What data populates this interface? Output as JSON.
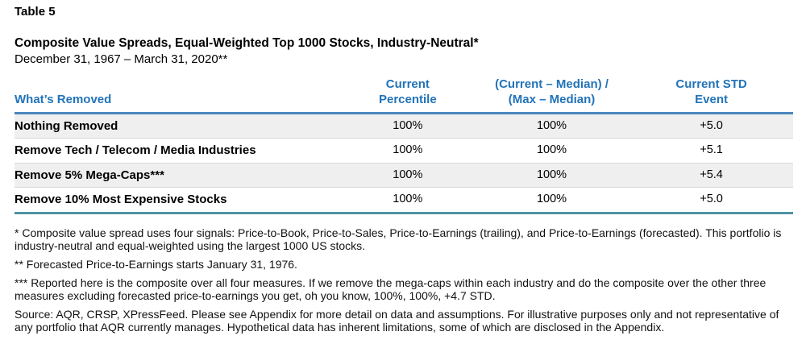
{
  "page": {
    "table_label": "Table 5",
    "title": "Composite Value Spreads, Equal-Weighted Top 1000 Stocks, Industry-Neutral*",
    "subtitle": "December 31, 1967 – March 31, 2020**"
  },
  "table": {
    "headers": {
      "whats_removed": "What’s Removed",
      "current_percentile": "Current\nPercentile",
      "current_median_ratio": "(Current – Median) /\n(Max – Median)",
      "current_std_event": "Current STD\nEvent"
    },
    "rows": [
      {
        "whats_removed": "Nothing Removed",
        "current_percentile": "100%",
        "current_median_ratio": "100%",
        "current_std_event": "+5.0"
      },
      {
        "whats_removed": "Remove Tech / Telecom / Media Industries",
        "current_percentile": "100%",
        "current_median_ratio": "100%",
        "current_std_event": "+5.1"
      },
      {
        "whats_removed": "Remove 5% Mega-Caps***",
        "current_percentile": "100%",
        "current_median_ratio": "100%",
        "current_std_event": "+5.4"
      },
      {
        "whats_removed": "Remove 10% Most Expensive Stocks",
        "current_percentile": "100%",
        "current_median_ratio": "100%",
        "current_std_event": "+5.0"
      }
    ]
  },
  "footnotes": [
    "* Composite value spread uses four signals: Price-to-Book, Price-to-Sales, Price-to-Earnings (trailing), and Price-to-Earnings (forecasted). This portfolio is industry-neutral and equal-weighted using the largest 1000 US stocks.",
    "** Forecasted Price-to-Earnings starts January 31, 1976.",
    "*** Reported here is the composite over all four measures. If we remove the mega-caps within each industry and do the composite over the other three measures excluding forecasted price-to-earnings you get, oh you know, 100%, 100%, +4.7 STD.",
    "Source: AQR, CRSP, XPressFeed. Please see Appendix for more detail on data and assumptions. For illustrative purposes only and not representative of any portfolio that AQR currently manages. Hypothetical data has inherent limitations, some of which are disclosed in the Appendix."
  ],
  "colors": {
    "header_text_blue": "#2173b9",
    "header_rule_blue": "#4b86be",
    "bottom_rule_teal": "#4e93a4",
    "row_alt_background": "#efefef",
    "row_separator": "#d8d8d8"
  },
  "chart_data": {
    "type": "table",
    "title": "Composite Value Spreads, Equal-Weighted Top 1000 Stocks, Industry-Neutral*",
    "subtitle": "December 31, 1967 – March 31, 2020**",
    "columns": [
      "What’s Removed",
      "Current Percentile",
      "(Current – Median) / (Max – Median)",
      "Current STD Event"
    ],
    "rows": [
      [
        "Nothing Removed",
        "100%",
        "100%",
        "+5.0"
      ],
      [
        "Remove Tech / Telecom / Media Industries",
        "100%",
        "100%",
        "+5.1"
      ],
      [
        "Remove 5% Mega-Caps***",
        "100%",
        "100%",
        "+5.4"
      ],
      [
        "Remove 10% Most Expensive Stocks",
        "100%",
        "100%",
        "+5.0"
      ]
    ]
  }
}
